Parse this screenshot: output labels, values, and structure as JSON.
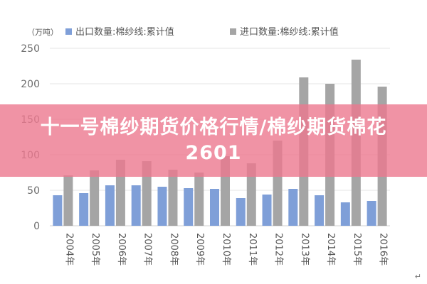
{
  "banner": {
    "title": "十一号棉纱期货价格行情/棉纱期货棉花2601"
  },
  "corner_mark": "↵",
  "chart_data": {
    "type": "bar",
    "unit": "（万吨）",
    "categories": [
      "2004年",
      "2005年",
      "2006年",
      "2007年",
      "2008年",
      "2009年",
      "2010年",
      "2011年",
      "2012年",
      "2013年",
      "2014年",
      "2015年",
      "2016年"
    ],
    "series": [
      {
        "name": "出口数量:棉纱线:累计值",
        "color": "#7f9fd8",
        "values": [
          43,
          46,
          57,
          57,
          55,
          53,
          52,
          39,
          44,
          52,
          43,
          33,
          35
        ]
      },
      {
        "name": "进口数量:棉纱线:累计值",
        "color": "#a5a5a5",
        "values": [
          71,
          78,
          93,
          91,
          79,
          75,
          98,
          88,
          120,
          209,
          200,
          234,
          196
        ]
      }
    ],
    "yticks": [
      0,
      50,
      100,
      150,
      200,
      250
    ],
    "ylim": [
      0,
      250
    ],
    "grid": true,
    "legend": "top"
  }
}
